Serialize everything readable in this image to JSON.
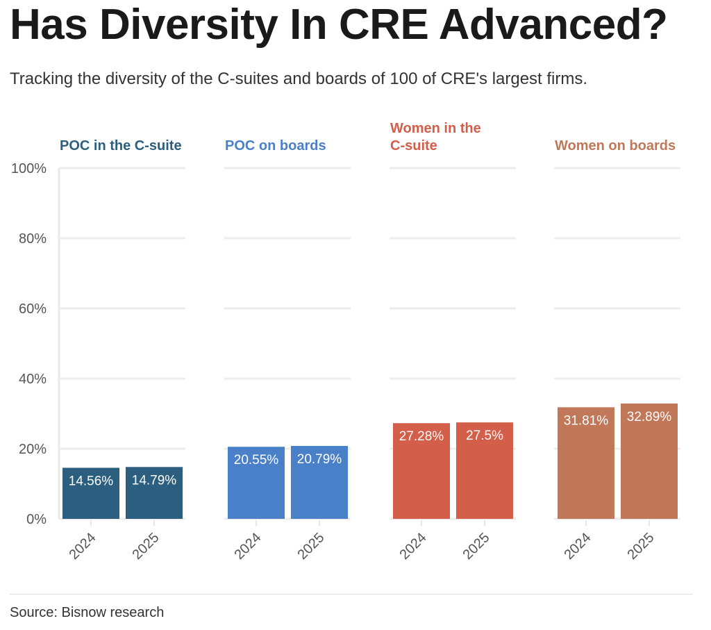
{
  "title": "Has Diversity In CRE Advanced?",
  "subtitle": "Tracking the diversity of the C-suites and boards of 100 of CRE's largest firms.",
  "source": "Source: Bisnow research",
  "chart_data": {
    "type": "bar",
    "layout": "small-multiples",
    "ylim": [
      0,
      100
    ],
    "yticks": [
      "0%",
      "20%",
      "40%",
      "60%",
      "80%",
      "100%"
    ],
    "ytick_values": [
      0,
      20,
      40,
      60,
      80,
      100
    ],
    "grid": true,
    "categories": [
      "2024",
      "2025"
    ],
    "panels": [
      {
        "title": [
          "POC in the C-suite"
        ],
        "color": "#2c5f7f",
        "values": [
          14.56,
          14.79
        ],
        "labels": [
          "14.56%",
          "14.79%"
        ]
      },
      {
        "title": [
          "POC on boards"
        ],
        "color": "#4a80c8",
        "values": [
          20.55,
          20.79
        ],
        "labels": [
          "20.55%",
          "20.79%"
        ]
      },
      {
        "title": [
          "Women in the",
          "C-suite"
        ],
        "color": "#d35f4a",
        "values": [
          27.28,
          27.5
        ],
        "labels": [
          "27.28%",
          "27.5%"
        ]
      },
      {
        "title": [
          "Women on boards"
        ],
        "color": "#c07858",
        "values": [
          31.81,
          32.89
        ],
        "labels": [
          "31.81%",
          "32.89%"
        ]
      }
    ]
  }
}
